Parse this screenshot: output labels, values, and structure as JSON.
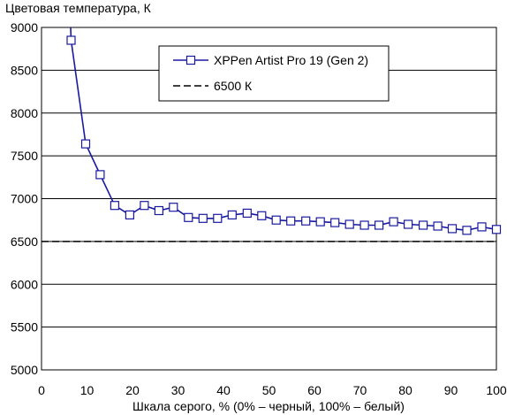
{
  "chart_data": {
    "type": "line",
    "title": "",
    "ylabel": "Цветовая температура, К",
    "xlabel": "Шкала серого, % (0% – черный, 100% – белый)",
    "xlim": [
      0,
      100
    ],
    "ylim": [
      5000,
      9000
    ],
    "x_ticks": [
      "0",
      "10",
      "20",
      "30",
      "40",
      "50",
      "60",
      "70",
      "80",
      "90",
      "100"
    ],
    "y_ticks": [
      "5000",
      "5500",
      "6000",
      "6500",
      "7000",
      "7500",
      "8000",
      "8500",
      "9000"
    ],
    "grid": "horizontal",
    "legend_position": "top-center",
    "series": [
      {
        "name": "XPPen Artist Pro 19 (Gen 2)",
        "style": "line-with-square-markers",
        "color": "#1a1aa0",
        "x": [
          6.5,
          9.7,
          12.9,
          16.1,
          19.4,
          22.6,
          25.8,
          29.0,
          32.3,
          35.5,
          38.7,
          41.9,
          45.2,
          48.4,
          51.6,
          54.8,
          58.1,
          61.3,
          64.5,
          67.7,
          71.0,
          74.2,
          77.4,
          80.6,
          83.9,
          87.1,
          90.3,
          93.5,
          96.8,
          100
        ],
        "y": [
          8850,
          7640,
          7280,
          6920,
          6810,
          6920,
          6860,
          6900,
          6780,
          6770,
          6770,
          6810,
          6830,
          6800,
          6750,
          6740,
          6740,
          6730,
          6720,
          6700,
          6690,
          6690,
          6730,
          6700,
          6690,
          6680,
          6650,
          6630,
          6670,
          6640
        ],
        "line_extends_above_axis": true
      },
      {
        "name": "6500 К",
        "style": "dashed",
        "color": "#000000",
        "value": 6500
      }
    ]
  }
}
